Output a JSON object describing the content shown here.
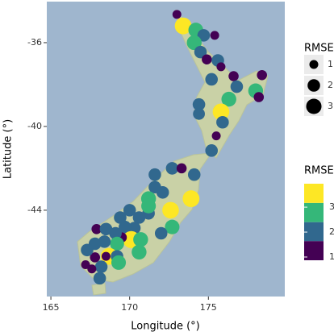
{
  "chart_data": {
    "type": "scatter",
    "xlabel": "Longitude (°)",
    "ylabel": "Latitude (°)",
    "xlim": [
      164.74,
      179.85
    ],
    "ylim": [
      -48.12,
      -34.04
    ],
    "xticks": [
      165,
      170,
      175
    ],
    "yticks": [
      -36,
      -40,
      -44
    ],
    "x": [
      173.0,
      173.4,
      174.2,
      174.7,
      174.1,
      175.4,
      174.5,
      174.9,
      175.6,
      175.8,
      175.2,
      176.6,
      178.4,
      176.8,
      178.0,
      178.2,
      176.3,
      175.7,
      174.4,
      174.4,
      175.8,
      175.9,
      175.5,
      175.2,
      172.7,
      173.3,
      174.1,
      173.9,
      172.6,
      171.6,
      171.2,
      171.2,
      172.1,
      172.7,
      172.0,
      170.6,
      170.3,
      169.7,
      170.1,
      169.5,
      170.7,
      170.6,
      169.1,
      169.2,
      168.4,
      167.9,
      168.5,
      167.8,
      168.7,
      168.5,
      169.2,
      167.8,
      168.2,
      167.6,
      167.3,
      168.1,
      169.3,
      169.4,
      170.0,
      167.2,
      171.6,
      171.2
    ],
    "y": [
      -34.65,
      -35.2,
      -35.4,
      -35.65,
      -36.0,
      -35.65,
      -36.45,
      -36.8,
      -36.85,
      -37.15,
      -37.75,
      -37.6,
      -37.55,
      -38.1,
      -38.3,
      -38.6,
      -38.7,
      -39.25,
      -38.95,
      -39.4,
      -39.3,
      -39.8,
      -40.45,
      -41.15,
      -42.0,
      -42.0,
      -42.3,
      -43.45,
      -44.0,
      -42.9,
      -43.45,
      -44.15,
      -43.15,
      -44.8,
      -45.1,
      -44.35,
      -44.85,
      -44.8,
      -45.4,
      -45.3,
      -45.4,
      -46.0,
      -45.1,
      -45.6,
      -45.5,
      -44.9,
      -44.9,
      -45.6,
      -46.2,
      -46.2,
      -46.2,
      -46.25,
      -46.7,
      -46.8,
      -45.9,
      -47.25,
      -46.5,
      -44.35,
      -44.0,
      -46.6,
      -42.3,
      -43.8
    ],
    "values": [
      1.0,
      3.6,
      2.8,
      2.0,
      2.8,
      1.0,
      2.0,
      1.3,
      2.0,
      1.0,
      2.0,
      1.3,
      1.3,
      2.0,
      2.8,
      1.3,
      2.8,
      2.0,
      2.0,
      1.8,
      3.5,
      2.0,
      1.0,
      2.0,
      2.0,
      1.3,
      2.0,
      3.6,
      3.5,
      2.0,
      2.8,
      2.0,
      2.0,
      2.7,
      2.0,
      2.0,
      2.0,
      2.0,
      3.7,
      1.3,
      2.8,
      2.8,
      2.0,
      2.5,
      2.0,
      1.3,
      2.0,
      2.0,
      3.6,
      1.0,
      2.0,
      1.3,
      2.0,
      1.0,
      2.0,
      2.0,
      2.7,
      2.0,
      2.0,
      1.0,
      2.0,
      2.7
    ],
    "size_legend": {
      "title": "RMSE",
      "values": [
        1,
        2,
        3
      ]
    },
    "color_legend": {
      "title": "RMSE",
      "ticks": [
        1,
        2,
        3
      ],
      "bins": [
        0.87,
        1.64,
        2.4,
        3.17,
        3.94
      ],
      "colors": [
        "#440154",
        "#31688e",
        "#35b779",
        "#fde725"
      ]
    }
  }
}
